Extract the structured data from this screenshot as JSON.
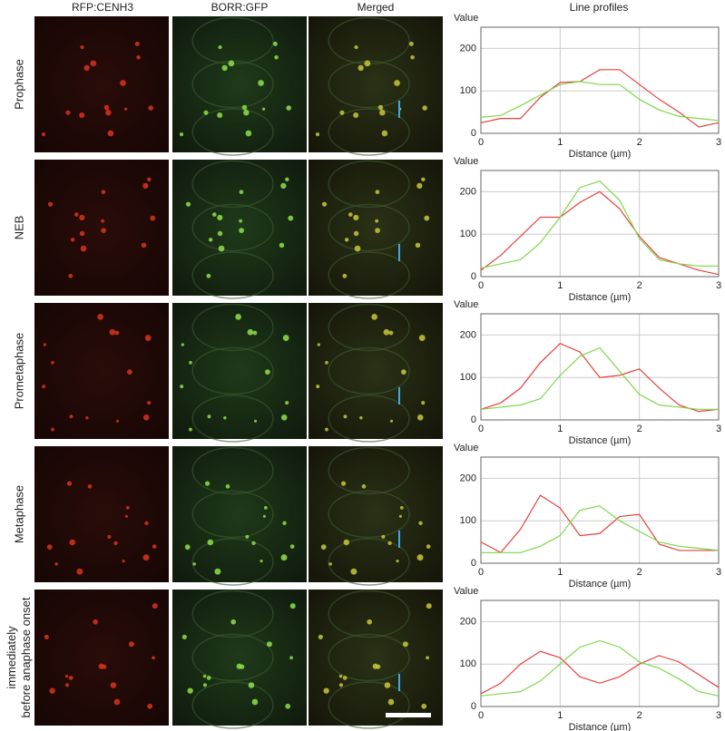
{
  "figure": {
    "columns": [
      "RFP:CENH3",
      "BORR:GFP",
      "Merged",
      "Line profiles"
    ],
    "rows": [
      "Prophase",
      "NEB",
      "Prometaphase",
      "Metaphase",
      "immediately before anaphase onset"
    ]
  },
  "chart_data": [
    {
      "type": "line",
      "y_label": "Value",
      "x_label": "Distance (µm)",
      "x": [
        0,
        0.25,
        0.5,
        0.75,
        1,
        1.25,
        1.5,
        1.75,
        2,
        2.25,
        2.5,
        2.75,
        3
      ],
      "series": [
        {
          "color": "#e8403a",
          "values": [
            25,
            35,
            35,
            85,
            120,
            122,
            150,
            150,
            115,
            80,
            50,
            15,
            25
          ]
        },
        {
          "color": "#7dd84a",
          "values": [
            38,
            42,
            65,
            90,
            115,
            122,
            115,
            115,
            80,
            55,
            40,
            35,
            30
          ]
        }
      ],
      "xlim": [
        0,
        3
      ],
      "xticks": [
        0,
        1,
        2,
        3
      ],
      "ylim": [
        0,
        250
      ],
      "yticks": [
        0,
        100,
        200
      ],
      "grid": true
    },
    {
      "type": "line",
      "y_label": "Value",
      "x_label": "Distance (µm)",
      "x": [
        0,
        0.25,
        0.5,
        0.75,
        1,
        1.25,
        1.5,
        1.75,
        2,
        2.25,
        2.5,
        2.75,
        3
      ],
      "series": [
        {
          "color": "#e8403a",
          "values": [
            15,
            50,
            95,
            140,
            140,
            175,
            200,
            160,
            95,
            45,
            30,
            15,
            5
          ]
        },
        {
          "color": "#7dd84a",
          "values": [
            20,
            30,
            40,
            80,
            140,
            210,
            225,
            180,
            90,
            40,
            30,
            25,
            25
          ]
        }
      ],
      "xlim": [
        0,
        3
      ],
      "xticks": [
        0,
        1,
        2,
        3
      ],
      "ylim": [
        0,
        250
      ],
      "yticks": [
        0,
        100,
        200
      ],
      "grid": true
    },
    {
      "type": "line",
      "y_label": "Value",
      "x_label": "Distance (µm)",
      "x": [
        0,
        0.25,
        0.5,
        0.75,
        1,
        1.25,
        1.5,
        1.75,
        2,
        2.25,
        2.5,
        2.75,
        3
      ],
      "series": [
        {
          "color": "#e8403a",
          "values": [
            25,
            40,
            75,
            135,
            180,
            160,
            100,
            105,
            120,
            75,
            35,
            20,
            25
          ]
        },
        {
          "color": "#7dd84a",
          "values": [
            25,
            30,
            35,
            50,
            105,
            150,
            170,
            115,
            60,
            35,
            30,
            25,
            25
          ]
        }
      ],
      "xlim": [
        0,
        3
      ],
      "xticks": [
        0,
        1,
        2,
        3
      ],
      "ylim": [
        0,
        250
      ],
      "yticks": [
        0,
        100,
        200
      ],
      "grid": true
    },
    {
      "type": "line",
      "y_label": "Value",
      "x_label": "Distance (µm)",
      "x": [
        0,
        0.25,
        0.5,
        0.75,
        1,
        1.25,
        1.5,
        1.75,
        2,
        2.25,
        2.5,
        2.75,
        3
      ],
      "series": [
        {
          "color": "#e8403a",
          "values": [
            50,
            25,
            80,
            160,
            130,
            65,
            70,
            110,
            115,
            45,
            30,
            30,
            30
          ]
        },
        {
          "color": "#7dd84a",
          "values": [
            25,
            25,
            25,
            40,
            65,
            125,
            135,
            100,
            75,
            50,
            40,
            35,
            30
          ]
        }
      ],
      "xlim": [
        0,
        3
      ],
      "xticks": [
        0,
        1,
        2,
        3
      ],
      "ylim": [
        0,
        250
      ],
      "yticks": [
        0,
        100,
        200
      ],
      "grid": true
    },
    {
      "type": "line",
      "y_label": "Value",
      "x_label": "Distance (µm)",
      "x": [
        0,
        0.25,
        0.5,
        0.75,
        1,
        1.25,
        1.5,
        1.75,
        2,
        2.25,
        2.5,
        2.75,
        3
      ],
      "series": [
        {
          "color": "#e8403a",
          "values": [
            30,
            55,
            100,
            130,
            115,
            70,
            55,
            70,
            100,
            120,
            105,
            75,
            45
          ]
        },
        {
          "color": "#7dd84a",
          "values": [
            25,
            30,
            35,
            60,
            100,
            140,
            155,
            140,
            105,
            90,
            65,
            35,
            25
          ]
        }
      ],
      "xlim": [
        0,
        3
      ],
      "xticks": [
        0,
        1,
        2,
        3
      ],
      "ylim": [
        0,
        250
      ],
      "yticks": [
        0,
        100,
        200
      ],
      "grid": true
    }
  ]
}
